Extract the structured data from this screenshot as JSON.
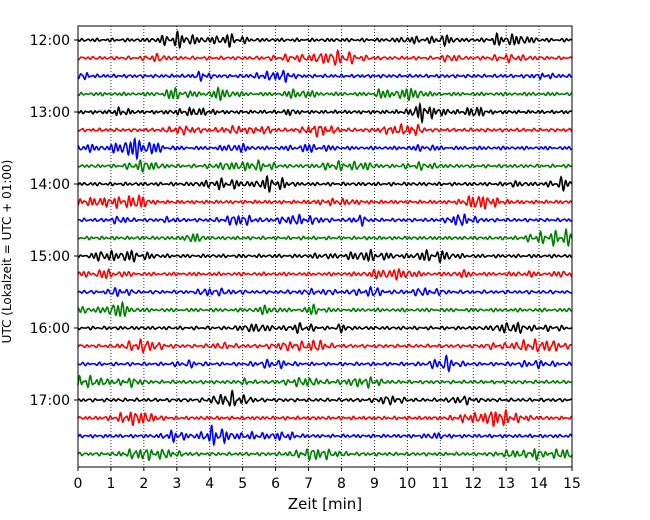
{
  "chart_data": {
    "type": "line",
    "title": "",
    "xlabel": "Zeit  [min]",
    "ylabel": "UTC (Lokalzeit = UTC + 01:00)",
    "xlim": [
      0,
      15
    ],
    "x_ticks": [
      0,
      1,
      2,
      3,
      4,
      5,
      6,
      7,
      8,
      9,
      10,
      11,
      12,
      13,
      14,
      15
    ],
    "y_ticks": [
      {
        "trace": 0,
        "label": "12:00"
      },
      {
        "trace": 4,
        "label": "13:00"
      },
      {
        "trace": 8,
        "label": "14:00"
      },
      {
        "trace": 12,
        "label": "15:00"
      },
      {
        "trace": 16,
        "label": "16:00"
      },
      {
        "trace": 20,
        "label": "17:00"
      }
    ],
    "grid": {
      "x": true,
      "y": false,
      "style": "dotted"
    },
    "trace_colors": [
      "#000000",
      "#ff0000",
      "#0000ff",
      "#008000"
    ],
    "trace_count": 24,
    "trace_minutes": 15
  }
}
